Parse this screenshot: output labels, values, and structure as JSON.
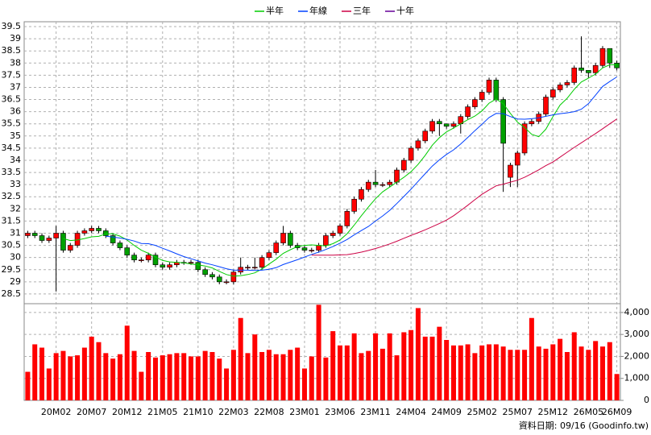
{
  "chart_data": {
    "type": "candlestick",
    "legend": "top",
    "grid": true,
    "up_color": "#ff0000",
    "down_color": "#00a000",
    "source": "資料日期: 09/16  (Goodinfo.tw)",
    "categories": [
      null,
      null,
      null,
      null,
      "20M02",
      null,
      null,
      null,
      null,
      "20M07",
      null,
      null,
      null,
      null,
      "20M12",
      null,
      null,
      null,
      null,
      "21M05",
      null,
      null,
      null,
      null,
      "21M10",
      null,
      null,
      null,
      null,
      "22M03",
      null,
      null,
      null,
      null,
      "22M08",
      null,
      null,
      null,
      null,
      "23M01",
      null,
      null,
      null,
      null,
      "23M06",
      null,
      null,
      null,
      null,
      "23M11",
      null,
      null,
      null,
      null,
      "24M04",
      null,
      null,
      null,
      null,
      "24M09",
      null,
      null,
      null,
      null,
      "25M02",
      null,
      null,
      null,
      null,
      "25M07",
      null,
      null,
      null,
      null,
      "25M12",
      null,
      null,
      null,
      null,
      "26M05",
      null,
      null,
      null,
      "26M09"
    ],
    "open": [
      30.9,
      31.0,
      30.9,
      30.7,
      30.8,
      31.0,
      30.3,
      30.5,
      31.0,
      31.1,
      31.2,
      31.1,
      30.9,
      30.6,
      30.4,
      30.1,
      29.9,
      29.9,
      30.1,
      29.7,
      29.6,
      29.7,
      29.8,
      29.8,
      29.8,
      29.5,
      29.3,
      29.2,
      29.0,
      29.0,
      29.4,
      29.6,
      29.6,
      29.6,
      30.0,
      30.2,
      30.6,
      31.0,
      30.5,
      30.4,
      30.3,
      30.3,
      30.5,
      30.9,
      31.0,
      31.3,
      31.9,
      32.4,
      32.8,
      33.1,
      33.0,
      33.0,
      33.1,
      33.6,
      34.0,
      34.5,
      34.8,
      35.2,
      35.6,
      35.5,
      35.4,
      35.5,
      35.8,
      36.2,
      36.5,
      36.8,
      37.3,
      36.5,
      33.3,
      33.8,
      34.3,
      35.5,
      35.6,
      35.9,
      36.6,
      36.9,
      37.1,
      37.2,
      37.8,
      37.7,
      37.6,
      37.9,
      38.6,
      38.0
    ],
    "high": [
      31.1,
      31.1,
      31.0,
      30.9,
      31.3,
      31.1,
      30.6,
      31.1,
      31.2,
      31.3,
      31.3,
      31.2,
      31.0,
      30.7,
      30.5,
      30.2,
      30.0,
      30.2,
      30.2,
      29.8,
      29.8,
      29.9,
      29.9,
      29.9,
      29.9,
      29.6,
      29.4,
      29.3,
      29.1,
      29.5,
      30.0,
      29.7,
      30.0,
      30.1,
      30.3,
      30.7,
      31.3,
      31.1,
      30.6,
      30.5,
      30.4,
      30.6,
      31.0,
      31.1,
      31.4,
      32.0,
      32.5,
      32.9,
      33.2,
      33.6,
      33.1,
      33.2,
      33.7,
      34.1,
      34.6,
      34.9,
      35.3,
      35.7,
      35.7,
      35.5,
      35.6,
      35.9,
      36.3,
      36.6,
      36.9,
      37.4,
      37.4,
      36.6,
      33.9,
      34.4,
      35.6,
      35.7,
      36.0,
      36.7,
      37.0,
      37.2,
      37.3,
      37.9,
      39.1,
      37.7,
      38.0,
      38.7,
      38.6,
      38.1
    ],
    "low": [
      30.8,
      30.8,
      30.6,
      30.6,
      28.6,
      30.2,
      30.2,
      30.4,
      30.9,
      31.0,
      31.0,
      30.8,
      30.5,
      30.3,
      30.0,
      29.8,
      29.8,
      29.8,
      29.6,
      29.5,
      29.5,
      29.6,
      29.7,
      29.7,
      29.4,
      29.2,
      29.1,
      28.9,
      28.9,
      28.9,
      29.3,
      29.5,
      29.5,
      29.5,
      29.9,
      30.1,
      30.5,
      30.4,
      30.3,
      30.2,
      30.2,
      30.2,
      30.4,
      30.8,
      30.9,
      31.2,
      31.8,
      32.3,
      32.7,
      32.9,
      32.9,
      32.9,
      33.0,
      33.5,
      33.9,
      34.4,
      34.7,
      35.1,
      35.0,
      35.3,
      35.3,
      35.1,
      35.7,
      36.1,
      36.4,
      36.7,
      36.4,
      32.7,
      32.9,
      32.9,
      34.2,
      35.4,
      35.5,
      35.8,
      36.5,
      36.8,
      37.0,
      37.1,
      37.6,
      37.4,
      37.5,
      37.8,
      37.8,
      37.7
    ],
    "close": [
      31.0,
      30.9,
      30.7,
      30.8,
      31.0,
      30.3,
      30.5,
      31.0,
      31.1,
      31.2,
      31.1,
      30.9,
      30.6,
      30.4,
      30.1,
      29.9,
      29.9,
      30.1,
      29.7,
      29.6,
      29.7,
      29.8,
      29.8,
      29.8,
      29.5,
      29.3,
      29.2,
      29.0,
      29.0,
      29.4,
      29.6,
      29.6,
      29.6,
      30.0,
      30.2,
      30.6,
      31.0,
      30.5,
      30.4,
      30.3,
      30.3,
      30.5,
      30.9,
      31.0,
      31.3,
      31.9,
      32.4,
      32.8,
      33.1,
      33.0,
      33.0,
      33.1,
      33.6,
      34.0,
      34.5,
      34.8,
      35.2,
      35.6,
      35.5,
      35.4,
      35.5,
      35.8,
      36.2,
      36.5,
      36.8,
      37.3,
      36.5,
      34.7,
      33.8,
      34.3,
      35.5,
      35.6,
      35.9,
      36.6,
      36.9,
      37.1,
      37.2,
      37.8,
      37.7,
      37.6,
      37.9,
      38.6,
      38.0,
      37.8
    ],
    "ylim": [
      28.1,
      39.7
    ],
    "yticks": [
      28.5,
      29,
      29.5,
      30,
      30.5,
      31,
      31.5,
      32,
      32.5,
      33,
      33.5,
      34,
      34.5,
      35,
      35.5,
      36,
      36.5,
      37,
      37.5,
      38,
      38.5,
      39,
      39.5
    ],
    "series": [
      {
        "name": "半年",
        "color": "#00cc00",
        "values": [
          null,
          null,
          null,
          null,
          null,
          30.78,
          30.7,
          30.72,
          30.78,
          30.85,
          30.87,
          30.97,
          30.98,
          30.88,
          30.72,
          30.5,
          30.3,
          30.17,
          30.02,
          29.88,
          29.82,
          29.8,
          29.78,
          29.73,
          29.7,
          29.65,
          29.57,
          29.43,
          29.3,
          29.23,
          29.25,
          29.3,
          29.37,
          29.53,
          29.73,
          29.93,
          30.17,
          30.32,
          30.45,
          30.5,
          30.52,
          30.5,
          30.48,
          30.57,
          30.72,
          30.98,
          31.33,
          31.72,
          32.08,
          32.42,
          32.7,
          32.9,
          33.1,
          33.3,
          33.53,
          33.83,
          34.2,
          34.62,
          34.93,
          35.17,
          35.33,
          35.5,
          35.67,
          35.82,
          36.03,
          36.35,
          36.52,
          36.33,
          35.93,
          35.57,
          35.35,
          35.07,
          34.97,
          35.28,
          35.8,
          36.27,
          36.55,
          36.92,
          37.22,
          37.38,
          37.55,
          37.8,
          37.93,
          37.93
        ]
      },
      {
        "name": "年線",
        "color": "#0040ff",
        "values": [
          null,
          null,
          null,
          null,
          null,
          null,
          null,
          null,
          null,
          null,
          null,
          30.88,
          30.84,
          30.8,
          30.75,
          30.68,
          30.58,
          30.57,
          30.5,
          30.38,
          30.27,
          30.15,
          30.04,
          29.95,
          29.86,
          29.77,
          29.7,
          29.62,
          29.54,
          29.48,
          29.48,
          29.48,
          29.47,
          29.48,
          29.52,
          29.58,
          29.71,
          29.81,
          29.91,
          30.02,
          30.13,
          30.22,
          30.33,
          30.45,
          30.59,
          30.74,
          30.93,
          31.11,
          31.28,
          31.5,
          31.71,
          31.94,
          32.22,
          32.51,
          32.81,
          33.13,
          33.45,
          33.76,
          34.02,
          34.24,
          34.43,
          34.67,
          34.94,
          35.22,
          35.48,
          35.76,
          35.93,
          35.92,
          35.8,
          35.7,
          35.69,
          35.71,
          35.75,
          35.81,
          35.87,
          35.92,
          35.95,
          36.0,
          36.1,
          36.33,
          36.68,
          37.04,
          37.24,
          37.43
        ]
      },
      {
        "name": "三年",
        "color": "#cc0044",
        "values": [
          null,
          null,
          null,
          null,
          null,
          null,
          null,
          null,
          null,
          null,
          null,
          null,
          null,
          null,
          null,
          null,
          null,
          null,
          null,
          null,
          null,
          null,
          null,
          null,
          null,
          null,
          null,
          null,
          null,
          null,
          null,
          null,
          null,
          null,
          null,
          null,
          null,
          null,
          null,
          null,
          30.1,
          30.1,
          30.1,
          30.1,
          30.11,
          30.12,
          30.16,
          30.22,
          30.29,
          30.37,
          30.46,
          30.56,
          30.67,
          30.79,
          30.91,
          31.02,
          31.14,
          31.27,
          31.4,
          31.54,
          31.72,
          31.93,
          32.15,
          32.38,
          32.6,
          32.78,
          32.95,
          33.02,
          33.1,
          33.18,
          33.3,
          33.45,
          33.61,
          33.78,
          33.93,
          34.13,
          34.33,
          34.53,
          34.72,
          34.91,
          35.1,
          35.3,
          35.5,
          35.7
        ]
      },
      {
        "name": "十年",
        "color": "#660099",
        "values": [
          null,
          null,
          null,
          null,
          null,
          null,
          null,
          null,
          null,
          null,
          null,
          null,
          null,
          null,
          null,
          null,
          null,
          null,
          null,
          null,
          null,
          null,
          null,
          null,
          null,
          null,
          null,
          null,
          null,
          null,
          null,
          null,
          null,
          null,
          null,
          null,
          null,
          null,
          null,
          null,
          null,
          null,
          null,
          null,
          null,
          null,
          null,
          null,
          null,
          null,
          null,
          null,
          null,
          null,
          null,
          null,
          null,
          null,
          null,
          null,
          null,
          null,
          null,
          null,
          null,
          null,
          null,
          null,
          null,
          null,
          null,
          null,
          null,
          null,
          null,
          null,
          null,
          null,
          null,
          null,
          null,
          null,
          null,
          null
        ]
      }
    ],
    "volume": {
      "color": "#ff0000",
      "values": [
        1300,
        2550,
        2400,
        1450,
        2150,
        2250,
        2000,
        2050,
        2400,
        2900,
        2650,
        2150,
        1900,
        2100,
        3400,
        2250,
        1300,
        2200,
        1950,
        2050,
        2100,
        2150,
        2150,
        2000,
        2000,
        2250,
        2200,
        1900,
        1450,
        2300,
        3750,
        2150,
        3000,
        2200,
        2300,
        2100,
        2100,
        2300,
        2400,
        1450,
        2000,
        4350,
        1950,
        3150,
        2500,
        2500,
        3050,
        2150,
        2250,
        3050,
        2350,
        3050,
        2050,
        3100,
        3200,
        4200,
        2900,
        2900,
        3350,
        2750,
        2500,
        2500,
        2550,
        2150,
        2500,
        2550,
        2550,
        2450,
        2300,
        2300,
        2300,
        3750,
        2450,
        2350,
        2550,
        2800,
        2200,
        3100,
        2450,
        2300,
        2700,
        2450,
        2650,
        1200
      ],
      "ylim": [
        0,
        4400
      ],
      "yticks": [
        0,
        {
          "value": 1000,
          "label": "1,000"
        },
        {
          "value": 2000,
          "label": "2,000"
        },
        {
          "value": 3000,
          "label": "3,000"
        },
        {
          "value": 4000,
          "label": "4,000"
        }
      ]
    }
  }
}
